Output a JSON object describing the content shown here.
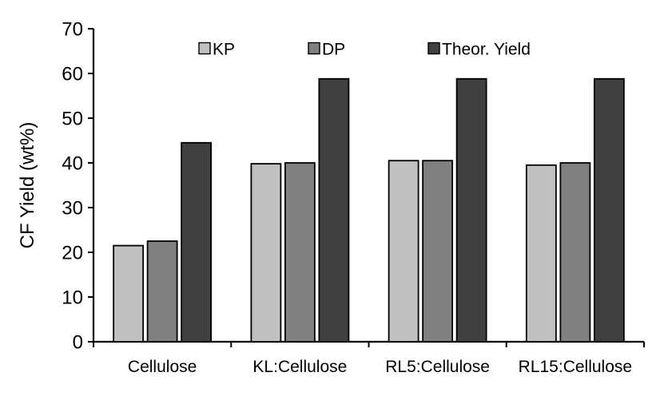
{
  "chart_data": {
    "type": "bar",
    "title": "",
    "xlabel": "",
    "ylabel": "CF Yield (wt%)",
    "ylim": [
      0,
      70
    ],
    "yticks": [
      0,
      10,
      20,
      30,
      40,
      50,
      60,
      70
    ],
    "grid": false,
    "legend_position": "top",
    "categories": [
      "Cellulose",
      "KL:Cellulose",
      "RL5:Cellulose",
      "RL15:Cellulose"
    ],
    "series": [
      {
        "name": "KP",
        "color": "#c0c0c0",
        "values": [
          21.5,
          39.8,
          40.5,
          39.5
        ]
      },
      {
        "name": "DP",
        "color": "#808080",
        "values": [
          22.5,
          40.0,
          40.5,
          40.0
        ]
      },
      {
        "name": "Theor. Yield",
        "color": "#404040",
        "values": [
          44.5,
          58.8,
          58.8,
          58.8
        ]
      }
    ]
  }
}
